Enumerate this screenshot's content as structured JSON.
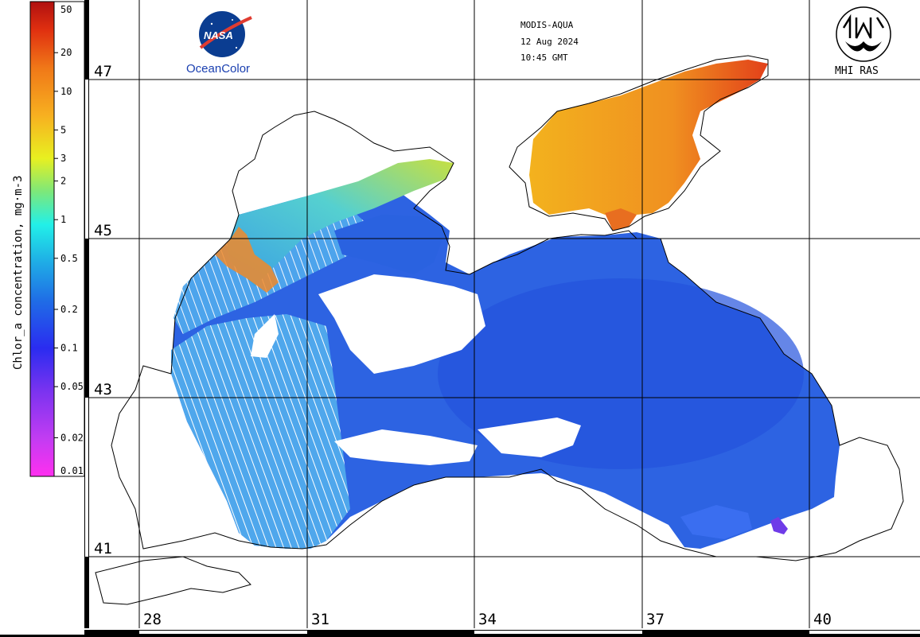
{
  "header": {
    "sensor": "MODIS-AQUA",
    "date": "12 Aug 2024",
    "time": "10:45 GMT"
  },
  "logos": {
    "nasa": {
      "name": "nasa-logo-icon",
      "wordmark": "NASA",
      "caption": "OceanColor"
    },
    "mhi": {
      "name": "mhi-logo-icon",
      "caption": "MHI RAS"
    }
  },
  "colorbar": {
    "title": "Chlor_a concentration, mg·m-3",
    "scale": "log",
    "range": [
      0.01,
      50
    ],
    "ticks": [
      "50",
      "20",
      "10",
      "5",
      "3",
      "2",
      "1",
      "0.5",
      "0.2",
      "0.1",
      "0.05",
      "0.02",
      "0.01"
    ],
    "tick_values": [
      50,
      20,
      10,
      5,
      3,
      2,
      1,
      0.5,
      0.2,
      0.1,
      0.05,
      0.02,
      0.01
    ],
    "colors": [
      "#ff2ff0",
      "#a43cf2",
      "#2a2cf0",
      "#1f6de6",
      "#1fb4e6",
      "#22f0e8",
      "#7de87a",
      "#e8f020",
      "#f7b020",
      "#f07818",
      "#e03010",
      "#c01010"
    ]
  },
  "map": {
    "latitudes": [
      "47",
      "45",
      "43",
      "41"
    ],
    "longitudes": [
      "28",
      "31",
      "34",
      "37",
      "40"
    ],
    "colors": {
      "open_sea": "#2f6fe6",
      "deep_blue": "#2653e0",
      "cyan_shelf": "#3fb8e8",
      "green_shelf": "#72d6a0",
      "azov": "#f2a21e",
      "azov_hot": "#e5351a",
      "coast_line": "#000000",
      "grid": "#000000"
    }
  }
}
